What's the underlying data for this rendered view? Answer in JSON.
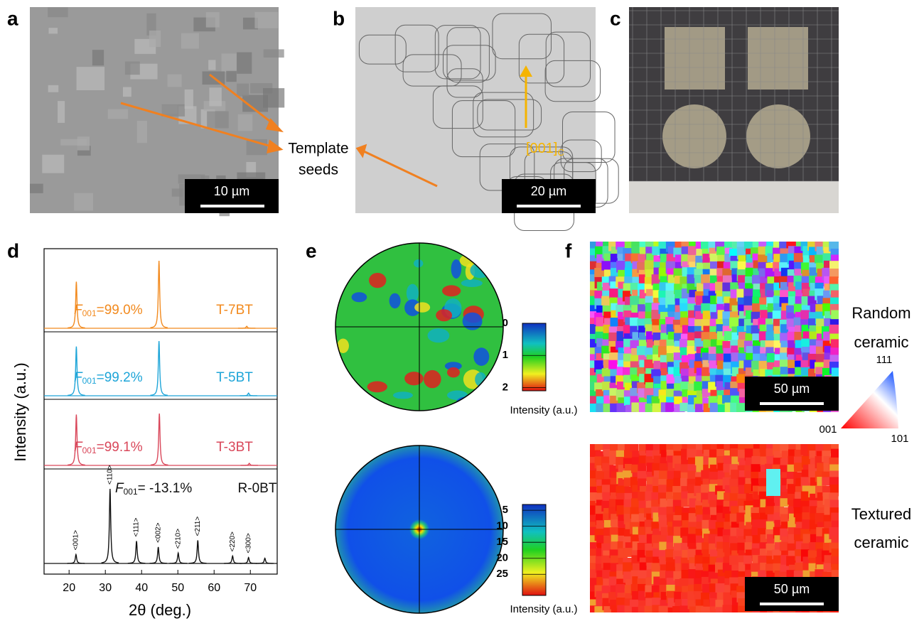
{
  "panels": {
    "a": {
      "label": "a",
      "scale_bar": "10 µm"
    },
    "b": {
      "label": "b",
      "scale_bar": "20 µm",
      "direction": {
        "text": "[001]",
        "subscript": "C"
      }
    },
    "annotation": {
      "line1": "Template",
      "line2": "seeds"
    },
    "c": {
      "label": "c"
    },
    "d": {
      "label": "d"
    },
    "e": {
      "label": "e",
      "top_colorbar": {
        "ticks": [
          0,
          1,
          2
        ],
        "lim": [
          0,
          2.1
        ],
        "title": "Intensity (a.u.)"
      },
      "bottom_colorbar": {
        "ticks": [
          5,
          10,
          15,
          20,
          25
        ],
        "lim": [
          3.2,
          31.6
        ],
        "title": "Intensity (a.u.)"
      }
    },
    "f": {
      "label": "f",
      "top_map": {
        "scale_bar": "50 µm",
        "line1": "Random",
        "line2": "ceramic"
      },
      "bottom_map": {
        "scale_bar": "50 µm",
        "line1": "Textured",
        "line2": "ceramic"
      },
      "ipf_labels": {
        "top": "111",
        "left": "001",
        "right": "101"
      }
    }
  },
  "chart_data": {
    "type": "line",
    "x_label": "2θ (deg.)",
    "y_label": "Intensity (a.u.)",
    "xlim": [
      13.1,
      77.4
    ],
    "xticks": [
      20,
      30,
      40,
      50,
      60,
      70
    ],
    "series": [
      {
        "name": "T-7BT",
        "color": "#f28a1e",
        "x": [
          22.0,
          44.8,
          69.0
        ],
        "values": [
          0.69,
          1.0,
          0.03
        ],
        "annotation": {
          "symbol": "F",
          "subscript": "001",
          "text": "=99.0%"
        }
      },
      {
        "name": "T-5BT",
        "color": "#1ea5d8",
        "x": [
          22.0,
          44.8,
          69.5
        ],
        "values": [
          0.9,
          1.0,
          0.05
        ],
        "annotation": {
          "symbol": "F",
          "subscript": "001",
          "text": "=99.2%"
        }
      },
      {
        "name": "T-3BT",
        "color": "#d9475a",
        "x": [
          22.0,
          44.9,
          69.7
        ],
        "values": [
          0.98,
          1.0,
          0.04
        ],
        "annotation": {
          "symbol": "F",
          "subscript": "001",
          "text": "=99.1%"
        }
      },
      {
        "name": "R-0BT",
        "color": "#111111",
        "x": [
          21.9,
          31.3,
          38.6,
          44.6,
          50.1,
          55.5,
          65.1,
          69.5,
          74.0
        ],
        "values": [
          0.12,
          1.0,
          0.3,
          0.22,
          0.14,
          0.31,
          0.1,
          0.08,
          0.07
        ],
        "peak_labels": [
          "<001>",
          "<110>",
          "<111>",
          "<002>",
          "<210>",
          "<211>",
          "<220>",
          "<300>",
          null
        ],
        "annotation": {
          "symbol": "F",
          "subscript": "001",
          "text": "= -13.1%"
        }
      }
    ]
  }
}
